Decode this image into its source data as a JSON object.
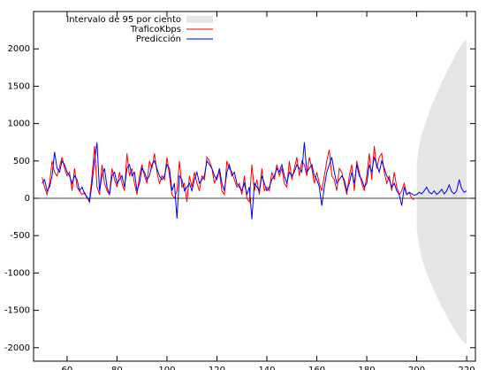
{
  "chart_data": {
    "type": "line",
    "x": [
      50,
      51,
      52,
      53,
      54,
      55,
      56,
      57,
      58,
      59,
      60,
      61,
      62,
      63,
      64,
      65,
      66,
      67,
      68,
      69,
      70,
      71,
      72,
      73,
      74,
      75,
      76,
      77,
      78,
      79,
      80,
      81,
      82,
      83,
      84,
      85,
      86,
      87,
      88,
      89,
      90,
      91,
      92,
      93,
      94,
      95,
      96,
      97,
      98,
      99,
      100,
      101,
      102,
      103,
      104,
      105,
      106,
      107,
      108,
      109,
      110,
      111,
      112,
      113,
      114,
      115,
      116,
      117,
      118,
      119,
      120,
      121,
      122,
      123,
      124,
      125,
      126,
      127,
      128,
      129,
      130,
      131,
      132,
      133,
      134,
      135,
      136,
      137,
      138,
      139,
      140,
      141,
      142,
      143,
      144,
      145,
      146,
      147,
      148,
      149,
      150,
      151,
      152,
      153,
      154,
      155,
      156,
      157,
      158,
      159,
      160,
      161,
      162,
      163,
      164,
      165,
      166,
      167,
      168,
      169,
      170,
      171,
      172,
      173,
      174,
      175,
      176,
      177,
      178,
      179,
      180,
      181,
      182,
      183,
      184,
      185,
      186,
      187,
      188,
      189,
      190,
      191,
      192,
      193,
      194,
      195,
      196,
      197,
      198,
      199,
      200,
      201,
      202,
      203,
      204,
      205,
      206,
      207,
      208,
      209,
      210,
      211,
      212,
      213,
      214,
      215,
      216,
      217,
      218,
      219,
      220
    ],
    "series": [
      {
        "name": "Intervalo de 95 por ciento",
        "color": "#e6e6e6",
        "x": [
          200,
          201,
          202,
          203,
          204,
          205,
          206,
          207,
          208,
          209,
          210,
          211,
          212,
          213,
          214,
          215,
          216,
          217,
          218,
          219,
          220
        ],
        "upper": [
          450,
          700,
          850,
          950,
          1050,
          1150,
          1250,
          1320,
          1400,
          1480,
          1550,
          1620,
          1690,
          1750,
          1820,
          1880,
          1950,
          2000,
          2060,
          2100,
          2120
        ],
        "lower": [
          -400,
          -650,
          -800,
          -900,
          -1000,
          -1080,
          -1160,
          -1240,
          -1310,
          -1380,
          -1450,
          -1510,
          -1580,
          -1640,
          -1700,
          -1750,
          -1800,
          -1850,
          -1900,
          -1930,
          -1950
        ]
      },
      {
        "name": "TraficoKbps",
        "color": "#ff0000",
        "values": [
          280,
          150,
          50,
          200,
          500,
          350,
          300,
          420,
          550,
          400,
          300,
          350,
          100,
          400,
          150,
          100,
          50,
          80,
          0,
          -20,
          300,
          700,
          150,
          50,
          450,
          200,
          100,
          50,
          400,
          250,
          150,
          350,
          200,
          100,
          600,
          300,
          400,
          200,
          50,
          300,
          450,
          300,
          200,
          500,
          400,
          600,
          350,
          200,
          300,
          250,
          550,
          300,
          50,
          0,
          100,
          500,
          150,
          200,
          -50,
          300,
          150,
          350,
          200,
          100,
          300,
          250,
          550,
          500,
          400,
          200,
          300,
          350,
          100,
          50,
          500,
          400,
          350,
          250,
          150,
          200,
          50,
          300,
          0,
          -50,
          450,
          100,
          250,
          50,
          400,
          100,
          150,
          100,
          350,
          250,
          450,
          300,
          400,
          200,
          150,
          500,
          250,
          400,
          550,
          300,
          500,
          450,
          300,
          550,
          400,
          200,
          350,
          200,
          100,
          300,
          500,
          650,
          300,
          250,
          100,
          400,
          350,
          200,
          50,
          300,
          450,
          100,
          500,
          350,
          200,
          100,
          300,
          600,
          250,
          700,
          400,
          550,
          600,
          350,
          200,
          300,
          100,
          350,
          150,
          50,
          100,
          200,
          50,
          80,
          0,
          -20,
          null,
          null,
          null,
          null,
          null,
          null,
          null,
          null,
          null,
          null,
          null,
          null,
          null,
          null,
          null,
          null,
          null,
          null,
          null,
          null,
          null
        ]
      },
      {
        "name": "Predicción",
        "color": "#0000ff",
        "values": [
          200,
          250,
          100,
          150,
          300,
          620,
          400,
          350,
          500,
          450,
          350,
          300,
          200,
          300,
          250,
          100,
          150,
          60,
          20,
          -50,
          200,
          500,
          750,
          100,
          300,
          400,
          150,
          50,
          300,
          350,
          200,
          250,
          300,
          150,
          400,
          450,
          300,
          350,
          100,
          200,
          400,
          350,
          250,
          300,
          450,
          500,
          400,
          300,
          250,
          300,
          450,
          400,
          100,
          200,
          -270,
          300,
          250,
          100,
          150,
          200,
          100,
          250,
          350,
          200,
          250,
          300,
          500,
          450,
          400,
          300,
          250,
          400,
          200,
          100,
          350,
          450,
          300,
          350,
          200,
          150,
          100,
          200,
          50,
          150,
          -280,
          200,
          150,
          100,
          300,
          200,
          100,
          150,
          250,
          300,
          400,
          350,
          450,
          300,
          200,
          350,
          300,
          350,
          450,
          400,
          350,
          750,
          350,
          400,
          450,
          300,
          250,
          150,
          -100,
          150,
          350,
          450,
          550,
          350,
          200,
          250,
          300,
          250,
          100,
          200,
          350,
          200,
          450,
          300,
          250,
          150,
          200,
          450,
          350,
          550,
          450,
          350,
          500,
          400,
          300,
          250,
          150,
          200,
          100,
          50,
          -100,
          150,
          50,
          80,
          60,
          40,
          50,
          80,
          60,
          100,
          150,
          80,
          60,
          100,
          50,
          80,
          120,
          60,
          100,
          180,
          90,
          60,
          100,
          250,
          130,
          80,
          100
        ]
      }
    ],
    "xlim": [
      46.6,
      223.5
    ],
    "ylim": [
      -2180,
      2500
    ],
    "xticks": [
      60,
      80,
      100,
      120,
      140,
      160,
      180,
      200,
      220
    ],
    "yticks": [
      -2000,
      -1500,
      -1000,
      -500,
      0,
      500,
      1000,
      1500,
      2000
    ],
    "legend": "upper left"
  }
}
